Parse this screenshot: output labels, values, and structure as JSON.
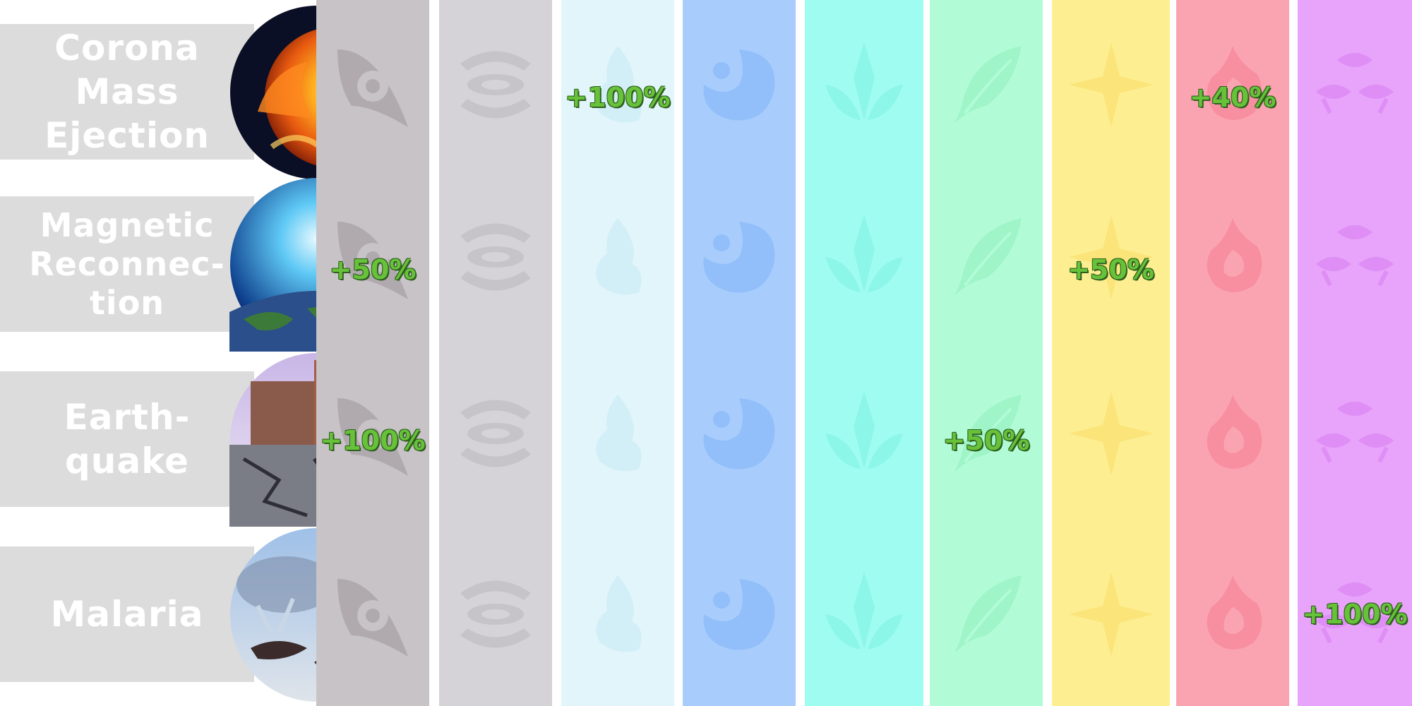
{
  "rows": [
    {
      "label": "Corona\nMass\nEjection",
      "image": "solar-flare"
    },
    {
      "label": "Magnetic\nReconnec-\ntion",
      "image": "earth-aurora"
    },
    {
      "label": "Earth-\nquake",
      "image": "cracked-street"
    },
    {
      "label": "Malaria",
      "image": "mosquito"
    }
  ],
  "columns": [
    {
      "name": "physical",
      "icon": "physical-swirl-icon",
      "color": "#c8c3c6"
    },
    {
      "name": "anemo",
      "icon": "eye-swirl-icon",
      "color": "#d5d3d8"
    },
    {
      "name": "cryo",
      "icon": "cryo-flame-icon",
      "color": "#e1f5fb"
    },
    {
      "name": "hydro",
      "icon": "hydro-drop-icon",
      "color": "#a8cdfc"
    },
    {
      "name": "dendro",
      "icon": "dendro-sprout-icon",
      "color": "#9ffcf1"
    },
    {
      "name": "geo",
      "icon": "leaf-icon",
      "color": "#b1fcd7"
    },
    {
      "name": "electro",
      "icon": "star-icon",
      "color": "#fdef91"
    },
    {
      "name": "pyro",
      "icon": "pyro-flame-icon",
      "color": "#fba4b1"
    },
    {
      "name": "spirit",
      "icon": "triple-eye-icon",
      "color": "#e8a3fa"
    }
  ],
  "bonuses": [
    {
      "row": 0,
      "col": 2,
      "text": "+100%"
    },
    {
      "row": 0,
      "col": 7,
      "text": "+40%"
    },
    {
      "row": 1,
      "col": 0,
      "text": "+50%"
    },
    {
      "row": 1,
      "col": 6,
      "text": "+50%"
    },
    {
      "row": 2,
      "col": 0,
      "text": "+100%"
    },
    {
      "row": 2,
      "col": 5,
      "text": "+50%"
    },
    {
      "row": 3,
      "col": 8,
      "text": "+100%"
    }
  ]
}
